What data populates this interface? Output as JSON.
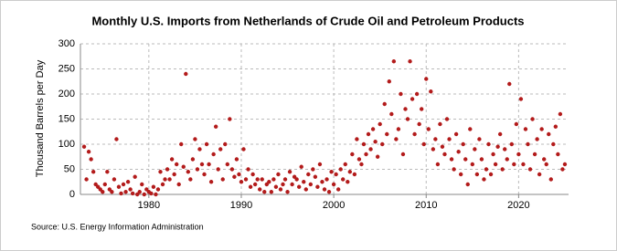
{
  "chart_data": {
    "type": "scatter",
    "title": "Monthly U.S. Imports from Netherlands of Crude Oil and Petroleum Products",
    "y_label": "Thousand Barrels per Day",
    "source": "Source: U.S. Energy Information Administration",
    "color": "#b31b1b",
    "grid": true,
    "xlim": [
      1972.6,
      2025.4
    ],
    "xticks": [
      1980,
      1990,
      2000,
      2010,
      2020
    ],
    "ylim": [
      0,
      300
    ],
    "yticks": [
      0,
      50,
      100,
      150,
      200,
      250,
      300
    ],
    "x": [
      1973,
      1973.25,
      1973.5,
      1973.75,
      1974,
      1974.25,
      1974.5,
      1974.75,
      1975,
      1975.25,
      1975.5,
      1975.75,
      1976,
      1976.25,
      1976.5,
      1976.75,
      1977,
      1977.25,
      1977.5,
      1977.75,
      1978,
      1978.25,
      1978.5,
      1978.75,
      1979,
      1979.25,
      1979.5,
      1979.75,
      1980,
      1980.25,
      1980.5,
      1980.75,
      1981,
      1981.25,
      1981.5,
      1981.75,
      1982,
      1982.25,
      1982.5,
      1982.75,
      1983,
      1983.25,
      1983.5,
      1983.75,
      1984,
      1984.25,
      1984.5,
      1984.75,
      1985,
      1985.25,
      1985.5,
      1985.75,
      1986,
      1986.25,
      1986.5,
      1986.75,
      1987,
      1987.25,
      1987.5,
      1987.75,
      1988,
      1988.25,
      1988.5,
      1988.75,
      1989,
      1989.25,
      1989.5,
      1989.75,
      1990,
      1990.25,
      1990.5,
      1990.75,
      1991,
      1991.25,
      1991.5,
      1991.75,
      1992,
      1992.25,
      1992.5,
      1992.75,
      1993,
      1993.25,
      1993.5,
      1993.75,
      1994,
      1994.25,
      1994.5,
      1994.75,
      1995,
      1995.25,
      1995.5,
      1995.75,
      1996,
      1996.25,
      1996.5,
      1996.75,
      1997,
      1997.25,
      1997.5,
      1997.75,
      1998,
      1998.25,
      1998.5,
      1998.75,
      1999,
      1999.25,
      1999.5,
      1999.75,
      2000,
      2000.25,
      2000.5,
      2000.75,
      2001,
      2001.25,
      2001.5,
      2001.75,
      2002,
      2002.25,
      2002.5,
      2002.75,
      2003,
      2003.25,
      2003.5,
      2003.75,
      2004,
      2004.25,
      2004.5,
      2004.75,
      2005,
      2005.25,
      2005.5,
      2005.75,
      2006,
      2006.25,
      2006.5,
      2006.75,
      2007,
      2007.25,
      2007.5,
      2007.75,
      2008,
      2008.25,
      2008.5,
      2008.75,
      2009,
      2009.25,
      2009.5,
      2009.75,
      2010,
      2010.25,
      2010.5,
      2010.75,
      2011,
      2011.25,
      2011.5,
      2011.75,
      2012,
      2012.25,
      2012.5,
      2012.75,
      2013,
      2013.25,
      2013.5,
      2013.75,
      2014,
      2014.25,
      2014.5,
      2014.75,
      2015,
      2015.25,
      2015.5,
      2015.75,
      2016,
      2016.25,
      2016.5,
      2016.75,
      2017,
      2017.25,
      2017.5,
      2017.75,
      2018,
      2018.25,
      2018.5,
      2018.75,
      2019,
      2019.25,
      2019.5,
      2019.75,
      2020,
      2020.25,
      2020.5,
      2020.75,
      2021,
      2021.25,
      2021.5,
      2021.75,
      2022,
      2022.25,
      2022.5,
      2022.75,
      2023,
      2023.25,
      2023.5,
      2023.75,
      2024,
      2024.25,
      2024.5,
      2024.75,
      2025
    ],
    "values": [
      95,
      30,
      85,
      70,
      45,
      20,
      15,
      10,
      5,
      20,
      45,
      10,
      5,
      30,
      110,
      15,
      2,
      20,
      5,
      25,
      10,
      2,
      35,
      0,
      5,
      20,
      0,
      10,
      5,
      2,
      15,
      0,
      10,
      45,
      20,
      30,
      50,
      30,
      70,
      40,
      60,
      20,
      100,
      55,
      240,
      45,
      30,
      70,
      110,
      50,
      90,
      60,
      40,
      100,
      60,
      25,
      80,
      135,
      50,
      90,
      30,
      100,
      60,
      150,
      50,
      35,
      70,
      40,
      25,
      90,
      30,
      50,
      15,
      40,
      20,
      30,
      10,
      30,
      5,
      20,
      25,
      5,
      30,
      15,
      40,
      10,
      20,
      30,
      5,
      45,
      20,
      35,
      30,
      15,
      55,
      25,
      10,
      40,
      20,
      50,
      35,
      15,
      60,
      25,
      10,
      30,
      5,
      45,
      20,
      40,
      10,
      50,
      30,
      60,
      25,
      45,
      80,
      40,
      110,
      70,
      60,
      100,
      80,
      120,
      90,
      130,
      105,
      75,
      140,
      100,
      180,
      120,
      225,
      160,
      265,
      110,
      130,
      200,
      80,
      170,
      150,
      265,
      190,
      120,
      200,
      140,
      170,
      100,
      230,
      130,
      205,
      90,
      110,
      60,
      140,
      95,
      80,
      150,
      110,
      70,
      50,
      120,
      85,
      40,
      100,
      70,
      20,
      130,
      60,
      90,
      40,
      110,
      70,
      30,
      50,
      100,
      40,
      80,
      60,
      95,
      120,
      50,
      90,
      70,
      220,
      100,
      60,
      140,
      80,
      190,
      60,
      130,
      100,
      50,
      150,
      80,
      110,
      40,
      130,
      70,
      60,
      120,
      30,
      100,
      135,
      80,
      160,
      50,
      60
    ]
  }
}
